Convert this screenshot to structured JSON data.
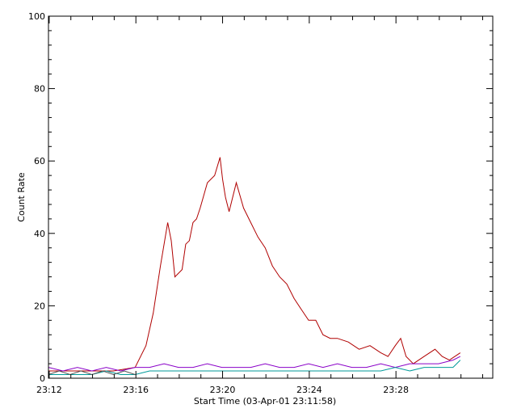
{
  "chart_data": {
    "type": "line",
    "xlabel": "Start Time (03-Apr-01 23:11:58)",
    "ylabel": "Count Rate",
    "xlim": [
      0,
      1230
    ],
    "ylim": [
      0,
      100
    ],
    "x_ticks": [
      {
        "t": 2,
        "label": "23:12"
      },
      {
        "t": 242,
        "label": "23:16"
      },
      {
        "t": 482,
        "label": "23:20"
      },
      {
        "t": 722,
        "label": "23:24"
      },
      {
        "t": 962,
        "label": "23:28"
      }
    ],
    "y_ticks": [
      0,
      20,
      40,
      60,
      80,
      100
    ],
    "grid": false,
    "colors": {
      "background": "#ffffff",
      "axes": "#000000",
      "series_red": "#b00000",
      "series_purple": "#8a00c8",
      "series_teal": "#009a9a",
      "series_gray": "#555555"
    },
    "series": [
      {
        "color": "#b00000",
        "x": [
          0,
          60,
          120,
          180,
          240,
          270,
          290,
          310,
          330,
          340,
          350,
          370,
          380,
          390,
          400,
          410,
          420,
          440,
          460,
          475,
          482,
          490,
          500,
          520,
          540,
          560,
          580,
          600,
          620,
          640,
          660,
          680,
          700,
          720,
          740,
          760,
          780,
          800,
          830,
          860,
          890,
          920,
          940,
          960,
          975,
          990,
          1010,
          1040,
          1070,
          1090,
          1110,
          1140
        ],
        "y": [
          2,
          2,
          2,
          2,
          3,
          9,
          18,
          31,
          43,
          38,
          28,
          30,
          37,
          38,
          43,
          44,
          47,
          54,
          56,
          61,
          55,
          50,
          46,
          54,
          47,
          43,
          39,
          36,
          31,
          28,
          26,
          22,
          19,
          16,
          16,
          12,
          11,
          11,
          10,
          8,
          9,
          7,
          6,
          9,
          11,
          6,
          4,
          6,
          8,
          6,
          5,
          7
        ]
      },
      {
        "color": "#8a00c8",
        "x": [
          0,
          40,
          80,
          120,
          160,
          200,
          240,
          280,
          320,
          360,
          400,
          440,
          480,
          520,
          560,
          600,
          640,
          680,
          720,
          760,
          800,
          840,
          880,
          920,
          960,
          1000,
          1040,
          1080,
          1120,
          1140
        ],
        "y": [
          3,
          2,
          3,
          2,
          3,
          2,
          3,
          3,
          4,
          3,
          3,
          4,
          3,
          3,
          3,
          4,
          3,
          3,
          4,
          3,
          4,
          3,
          3,
          4,
          3,
          4,
          4,
          4,
          5,
          6
        ]
      },
      {
        "color": "#009a9a",
        "x": [
          0,
          40,
          80,
          120,
          160,
          200,
          240,
          280,
          320,
          360,
          400,
          440,
          480,
          520,
          560,
          600,
          640,
          680,
          720,
          760,
          800,
          840,
          880,
          920,
          960,
          1000,
          1040,
          1080,
          1120,
          1140
        ],
        "y": [
          1,
          1,
          1,
          1,
          2,
          1,
          1,
          2,
          2,
          2,
          2,
          2,
          2,
          2,
          2,
          2,
          2,
          2,
          2,
          2,
          2,
          2,
          2,
          2,
          3,
          2,
          3,
          3,
          3,
          5
        ]
      },
      {
        "color": "#555555",
        "x": [
          0,
          30,
          60,
          90,
          120,
          150,
          180,
          210,
          240
        ],
        "y": [
          1,
          2,
          1,
          2,
          1,
          2,
          1,
          2,
          1
        ]
      }
    ]
  }
}
